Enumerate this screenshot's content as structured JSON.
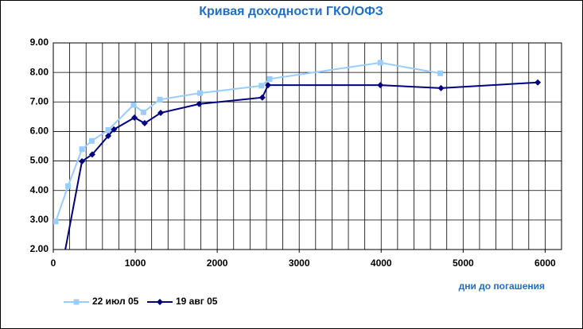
{
  "chart_data": {
    "type": "line",
    "title": "Кривая доходности ГКО/ОФЗ",
    "x_label": "дни до погашения",
    "xlim": [
      0,
      6200
    ],
    "xticks": [
      0,
      1000,
      2000,
      3000,
      4000,
      5000,
      6000
    ],
    "xgrid": [
      0,
      200,
      400,
      600,
      800,
      1000,
      1200,
      1400,
      1600,
      1800,
      2000,
      2200,
      2400,
      2600,
      2800,
      3000,
      3200,
      3400,
      3600,
      3800,
      4000,
      4200,
      4400,
      4600,
      4800,
      5000,
      5200,
      5400,
      5600,
      5800,
      6000,
      6200
    ],
    "ylim": [
      2,
      9
    ],
    "yticks": [
      {
        "value": 2,
        "label": "2.00"
      },
      {
        "value": 3,
        "label": "3.00"
      },
      {
        "value": 4,
        "label": "4.00"
      },
      {
        "value": 5,
        "label": "5.00"
      },
      {
        "value": 6,
        "label": "6.00"
      },
      {
        "value": 7,
        "label": "7.00"
      },
      {
        "value": 8,
        "label": "8.00"
      },
      {
        "value": 9,
        "label": "9.00"
      }
    ],
    "grid": true,
    "legend": "bottom-left",
    "series": [
      {
        "name": "22 июл 05",
        "color": "#99ccff",
        "marker": "square",
        "x": [
          30,
          180,
          350,
          470,
          670,
          980,
          1100,
          1300,
          1790,
          2540,
          2640,
          3990,
          4720
        ],
        "values": [
          2.95,
          4.15,
          5.4,
          5.68,
          6.05,
          6.9,
          6.65,
          7.08,
          7.3,
          7.55,
          7.78,
          8.33,
          7.97
        ]
      },
      {
        "name": "19 авг 05",
        "color": "#000080",
        "marker": "diamond",
        "x": [
          140,
          350,
          475,
          670,
          740,
          990,
          1115,
          1310,
          1780,
          2550,
          2620,
          3990,
          4730,
          5910
        ],
        "values": [
          1.9,
          4.99,
          5.22,
          5.85,
          6.07,
          6.47,
          6.28,
          6.63,
          6.93,
          7.15,
          7.57,
          7.57,
          7.47,
          7.66
        ]
      }
    ]
  }
}
